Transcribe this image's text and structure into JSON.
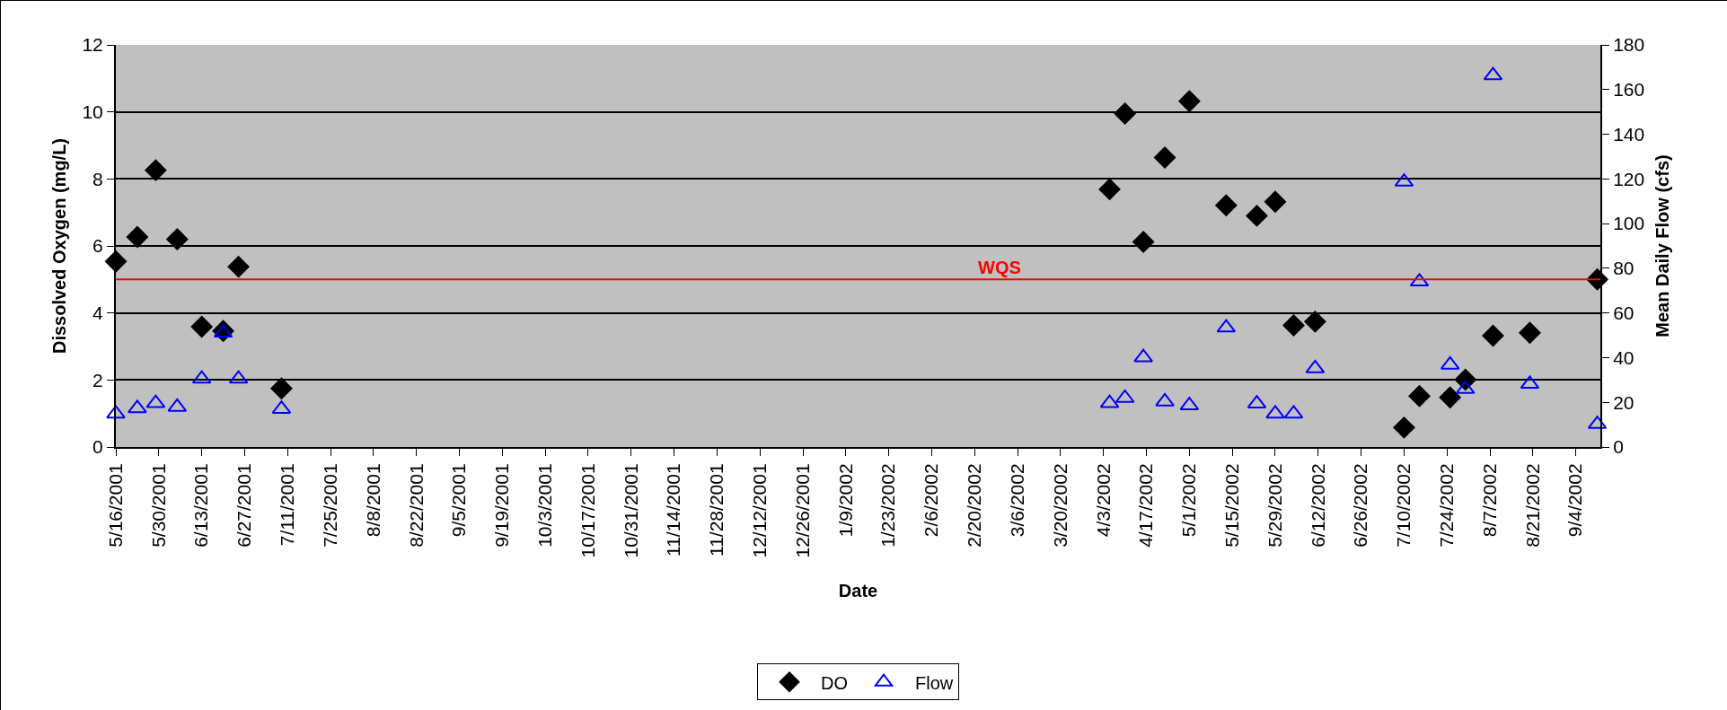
{
  "chart_data": {
    "type": "scatter",
    "xlabel": "Date",
    "ylabel": "Dissolved Oxygen (mg/L)",
    "y2label": "Mean Daily Flow (cfs)",
    "x": [
      "2001-05-16",
      "2001-05-23",
      "2001-05-29",
      "2001-06-05",
      "2001-06-13",
      "2001-06-20",
      "2001-06-25",
      "2001-07-09",
      "2002-04-05",
      "2002-04-10",
      "2002-04-16",
      "2002-04-23",
      "2002-05-01",
      "2002-05-13",
      "2002-05-23",
      "2002-05-29",
      "2002-06-04",
      "2002-06-11",
      "2002-07-10",
      "2002-07-15",
      "2002-07-25",
      "2002-07-30",
      "2002-08-08",
      "2002-08-20",
      "2002-09-11"
    ],
    "series": [
      {
        "name": "DO",
        "color": "#000000",
        "marker": "diamond",
        "values": [
          5.54,
          6.27,
          8.26,
          6.2,
          3.59,
          3.46,
          5.38,
          1.75,
          7.69,
          9.95,
          6.12,
          8.64,
          10.32,
          7.21,
          6.9,
          7.32,
          3.63,
          3.74,
          0.58,
          1.52,
          1.48,
          2.01,
          3.32,
          3.41,
          5.0
        ]
      },
      {
        "name": "Flow",
        "color": "#0000ff",
        "marker": "triangle",
        "axis": "y2",
        "values": [
          14.9,
          17.3,
          19.6,
          17.9,
          30.5,
          51.1,
          30.5,
          17.0,
          19.6,
          21.9,
          40.1,
          20.3,
          18.6,
          53.4,
          19.4,
          14.9,
          14.9,
          35.2,
          118.7,
          74.0,
          36.8,
          25.9,
          166.3,
          28.2,
          10.2
        ]
      }
    ],
    "xlim": [
      "2001-05-16",
      "2002-09-12"
    ],
    "xticks": [
      {
        "value": "2001-05-16",
        "label": "5/16/2001"
      },
      {
        "value": "2001-05-30",
        "label": "5/30/2001"
      },
      {
        "value": "2001-06-13",
        "label": "6/13/2001"
      },
      {
        "value": "2001-06-27",
        "label": "6/27/2001"
      },
      {
        "value": "2001-07-11",
        "label": "7/11/2001"
      },
      {
        "value": "2001-07-25",
        "label": "7/25/2001"
      },
      {
        "value": "2001-08-08",
        "label": "8/8/2001"
      },
      {
        "value": "2001-08-22",
        "label": "8/22/2001"
      },
      {
        "value": "2001-09-05",
        "label": "9/5/2001"
      },
      {
        "value": "2001-09-19",
        "label": "9/19/2001"
      },
      {
        "value": "2001-10-03",
        "label": "10/3/2001"
      },
      {
        "value": "2001-10-17",
        "label": "10/17/2001"
      },
      {
        "value": "2001-10-31",
        "label": "10/31/2001"
      },
      {
        "value": "2001-11-14",
        "label": "11/14/2001"
      },
      {
        "value": "2001-11-28",
        "label": "11/28/2001"
      },
      {
        "value": "2001-12-12",
        "label": "12/12/2001"
      },
      {
        "value": "2001-12-26",
        "label": "12/26/2001"
      },
      {
        "value": "2002-01-09",
        "label": "1/9/2002"
      },
      {
        "value": "2002-01-23",
        "label": "1/23/2002"
      },
      {
        "value": "2002-02-06",
        "label": "2/6/2002"
      },
      {
        "value": "2002-02-20",
        "label": "2/20/2002"
      },
      {
        "value": "2002-03-06",
        "label": "3/6/2002"
      },
      {
        "value": "2002-03-20",
        "label": "3/20/2002"
      },
      {
        "value": "2002-04-03",
        "label": "4/3/2002"
      },
      {
        "value": "2002-04-17",
        "label": "4/17/2002"
      },
      {
        "value": "2002-05-01",
        "label": "5/1/2002"
      },
      {
        "value": "2002-05-15",
        "label": "5/15/2002"
      },
      {
        "value": "2002-05-29",
        "label": "5/29/2002"
      },
      {
        "value": "2002-06-12",
        "label": "6/12/2002"
      },
      {
        "value": "2002-06-26",
        "label": "6/26/2002"
      },
      {
        "value": "2002-07-10",
        "label": "7/10/2002"
      },
      {
        "value": "2002-07-24",
        "label": "7/24/2002"
      },
      {
        "value": "2002-08-07",
        "label": "8/7/2002"
      },
      {
        "value": "2002-08-21",
        "label": "8/21/2002"
      },
      {
        "value": "2002-09-04",
        "label": "9/4/2002"
      }
    ],
    "ylim": [
      0,
      12
    ],
    "yticks": [
      0,
      2,
      4,
      6,
      8,
      10,
      12
    ],
    "y2lim": [
      0,
      180
    ],
    "y2ticks": [
      0,
      20,
      40,
      60,
      80,
      100,
      120,
      140,
      160,
      180
    ],
    "ref_lines": [
      {
        "axis": "y",
        "value": 5,
        "label": "WQS",
        "color": "#ff0000"
      }
    ],
    "grid": "y",
    "legend": "bottom"
  }
}
